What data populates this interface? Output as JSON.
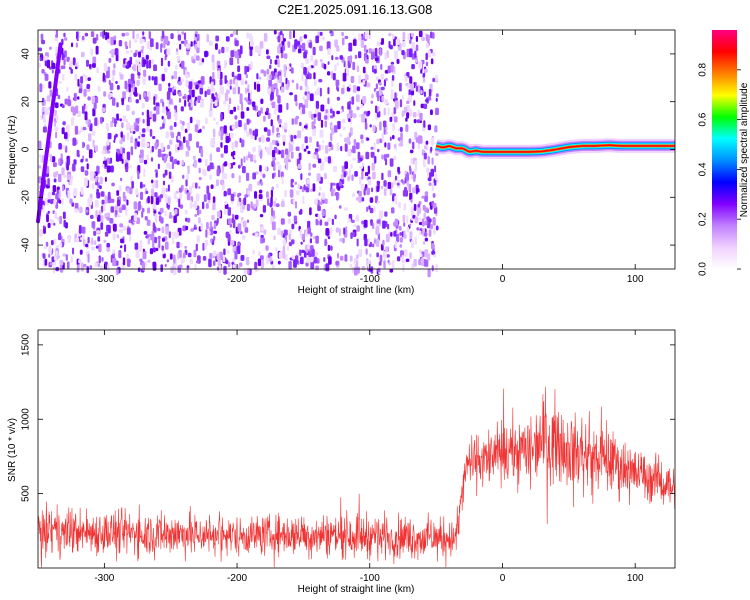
{
  "title": "C2E1.2025.091.16.13.G08",
  "chart_data": [
    {
      "type": "heatmap",
      "title": "C2E1.2025.091.16.13.G08",
      "xlabel": "Height of straight line (km)",
      "ylabel": "Frequency (Hz)",
      "xlim": [
        -350,
        130
      ],
      "ylim": [
        -50,
        50
      ],
      "x_ticks": [
        "-300",
        "-200",
        "-100",
        "0",
        "100"
      ],
      "y_ticks": [
        "-40",
        "-20",
        "0",
        "20",
        "40"
      ],
      "noise_region": {
        "x": [
          -350,
          -50
        ],
        "y": [
          -50,
          50
        ],
        "approx_amplitude": [
          0.05,
          0.25
        ]
      },
      "trace": {
        "name": "",
        "points": [
          [
            -350,
            -30
          ],
          [
            -333,
            44
          ]
        ],
        "approx_amplitude": 0.3
      },
      "signal": {
        "x": [
          -50,
          -45,
          -40,
          -35,
          -30,
          -25,
          -20,
          -15,
          -10,
          -5,
          0,
          10,
          20,
          30,
          40,
          50,
          60,
          70,
          80,
          90,
          100,
          110,
          120,
          130
        ],
        "y": [
          1.5,
          0.8,
          1.5,
          0.5,
          0.5,
          -1,
          -0.5,
          -1,
          -1,
          -1,
          -1,
          -1,
          -1,
          -0.8,
          0,
          1,
          1.5,
          1.5,
          1.8,
          1.5,
          1.5,
          1.5,
          1.5,
          1.5
        ],
        "amplitude": 0.9
      },
      "colorbar": {
        "label": "Normalized spectral amplitude",
        "range": [
          0,
          0.96
        ],
        "ticks": [
          "0.0",
          "0.2",
          "0.4",
          "0.6",
          "0.8"
        ],
        "colors": [
          "#ffffff",
          "#f0d0ff",
          "#c080ff",
          "#8000ff",
          "#0000ff",
          "#0090ff",
          "#00ffff",
          "#00ff00",
          "#ffff00",
          "#ff8000",
          "#ff0000",
          "#ff0080"
        ]
      }
    },
    {
      "type": "line",
      "xlabel": "Height of straight line (km)",
      "ylabel": "SNR (10 * v/v)",
      "xlim": [
        -350,
        130
      ],
      "ylim": [
        0,
        1600
      ],
      "x_ticks": [
        "-300",
        "-200",
        "-100",
        "0",
        "100"
      ],
      "y_ticks": [
        "500",
        "1000",
        "1500"
      ],
      "color": "#f03232",
      "series": [
        {
          "name": "",
          "envelope": {
            "x": [
              -350,
              -300,
              -250,
              -200,
              -150,
              -100,
              -60,
              -35,
              -27,
              -20,
              0,
              20,
              30,
              40,
              60,
              80,
              100,
              130
            ],
            "mean": [
              250,
              240,
              230,
              220,
              225,
              220,
              200,
              200,
              700,
              720,
              760,
              800,
              880,
              860,
              760,
              720,
              640,
              550
            ],
            "spread": [
              150,
              140,
              140,
              120,
              130,
              140,
              130,
              120,
              150,
              160,
              200,
              220,
              260,
              260,
              220,
              200,
              160,
              130
            ]
          }
        }
      ]
    }
  ]
}
